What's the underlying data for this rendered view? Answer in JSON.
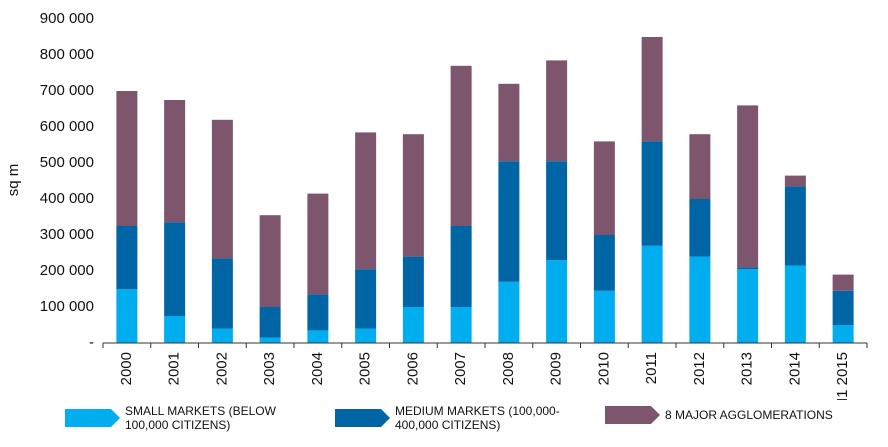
{
  "chart_data": {
    "type": "stacked_bar",
    "y_label": "sq m",
    "categories": [
      "2000",
      "2001",
      "2002",
      "2003",
      "2004",
      "2005",
      "2006",
      "2007",
      "2008",
      "2009",
      "2010",
      "2011",
      "2012",
      "2013",
      "2014",
      "H1 2015"
    ],
    "series": [
      {
        "name": "SMALL MARKETS (BELOW 100,000 CITIZENS)",
        "color": "#00adef",
        "values": [
          150000,
          75000,
          40000,
          15000,
          35000,
          40000,
          100000,
          100000,
          170000,
          230000,
          145000,
          270000,
          240000,
          205000,
          215000,
          50000
        ]
      },
      {
        "name": "MEDIUM MARKETS (100,000-400,000 CITIZENS)",
        "color": "#0065a4",
        "values": [
          175000,
          260000,
          195000,
          85000,
          100000,
          165000,
          140000,
          225000,
          335000,
          275000,
          155000,
          290000,
          160000,
          5000,
          220000,
          95000
        ]
      },
      {
        "name": "8 MAJOR AGGLOMERATIONS",
        "color": "#7d566e",
        "values": [
          375000,
          340000,
          385000,
          255000,
          280000,
          380000,
          340000,
          445000,
          215000,
          280000,
          260000,
          290000,
          180000,
          450000,
          30000,
          45000
        ]
      }
    ],
    "ylim": [
      0,
      900000
    ],
    "yticks": [
      {
        "value": 0,
        "label": "-"
      },
      {
        "value": 100000,
        "label": "100 000"
      },
      {
        "value": 200000,
        "label": "200 000"
      },
      {
        "value": 300000,
        "label": "300 000"
      },
      {
        "value": 400000,
        "label": "400 000"
      },
      {
        "value": 500000,
        "label": "500 000"
      },
      {
        "value": 600000,
        "label": "600 000"
      },
      {
        "value": 700000,
        "label": "700 000"
      },
      {
        "value": 800000,
        "label": "800 000"
      },
      {
        "value": 900000,
        "label": "900 000"
      }
    ],
    "grid": false,
    "legend": "bottom"
  }
}
